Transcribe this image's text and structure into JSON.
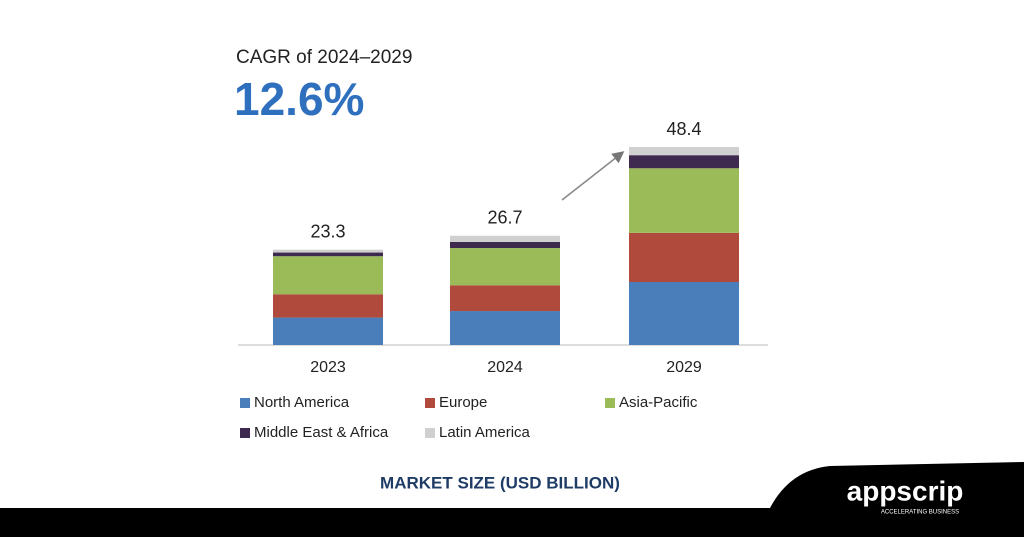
{
  "chart_data": {
    "type": "stacked-bar",
    "subtitle": "CAGR of 2024–2029",
    "headline": "12.6%",
    "x_label": "MARKET SIZE (USD BILLION)",
    "categories": [
      "2023",
      "2024",
      "2029"
    ],
    "totals": [
      23.3,
      26.7,
      48.4
    ],
    "series": [
      {
        "name": "North America",
        "color": "#4a7ebb",
        "values": [
          6.7,
          8.3,
          15.4
        ]
      },
      {
        "name": "Europe",
        "color": "#b04a3c",
        "values": [
          5.7,
          6.3,
          12.0
        ]
      },
      {
        "name": "Asia-Pacific",
        "color": "#9bbb59",
        "values": [
          9.3,
          9.1,
          15.8
        ]
      },
      {
        "name": "Middle East & Africa",
        "color": "#3f2a4f",
        "values": [
          0.9,
          1.5,
          3.2
        ]
      },
      {
        "name": "Latin America",
        "color": "#d0d0d0",
        "values": [
          0.7,
          1.5,
          2.0
        ]
      }
    ]
  },
  "logo": {
    "name": "appscrip",
    "tagline": "ACCELERATING BUSINESS"
  }
}
